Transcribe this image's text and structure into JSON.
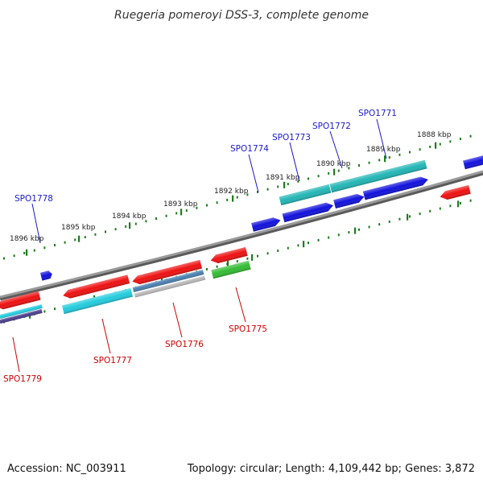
{
  "title": "Ruegeria pomeroyi DSS-3, complete genome",
  "footer": {
    "accession": "Accession: NC_003911",
    "topology": "Topology: circular; Length: 4,109,442 bp; Genes: 3,872"
  },
  "colors": {
    "backbone": "#8a8a8a",
    "tick": "#1e7d1e",
    "red": "#ee1111",
    "blue": "#1111dd",
    "cyan": "#22ccdd",
    "teal": "#22b5b5",
    "green": "#33bb33",
    "steel": "#4a7fb0",
    "grey": "#b8b8b8",
    "navy": "#4a3c8a",
    "top_label": "#1a1acc",
    "bottom_label": "#d00000"
  },
  "kbp_labels": [
    "1888 kbp",
    "1889 kbp",
    "1890 kbp",
    "1891 kbp",
    "1892 kbp",
    "1893 kbp",
    "1894 kbp",
    "1895 kbp",
    "1896 kbp"
  ],
  "genes_top": [
    "SPO1771",
    "SPO1772",
    "SPO1773",
    "SPO1774",
    "SPO1778"
  ],
  "genes_bottom": [
    "SPO1775",
    "SPO1776",
    "SPO1777",
    "SPO1779"
  ]
}
